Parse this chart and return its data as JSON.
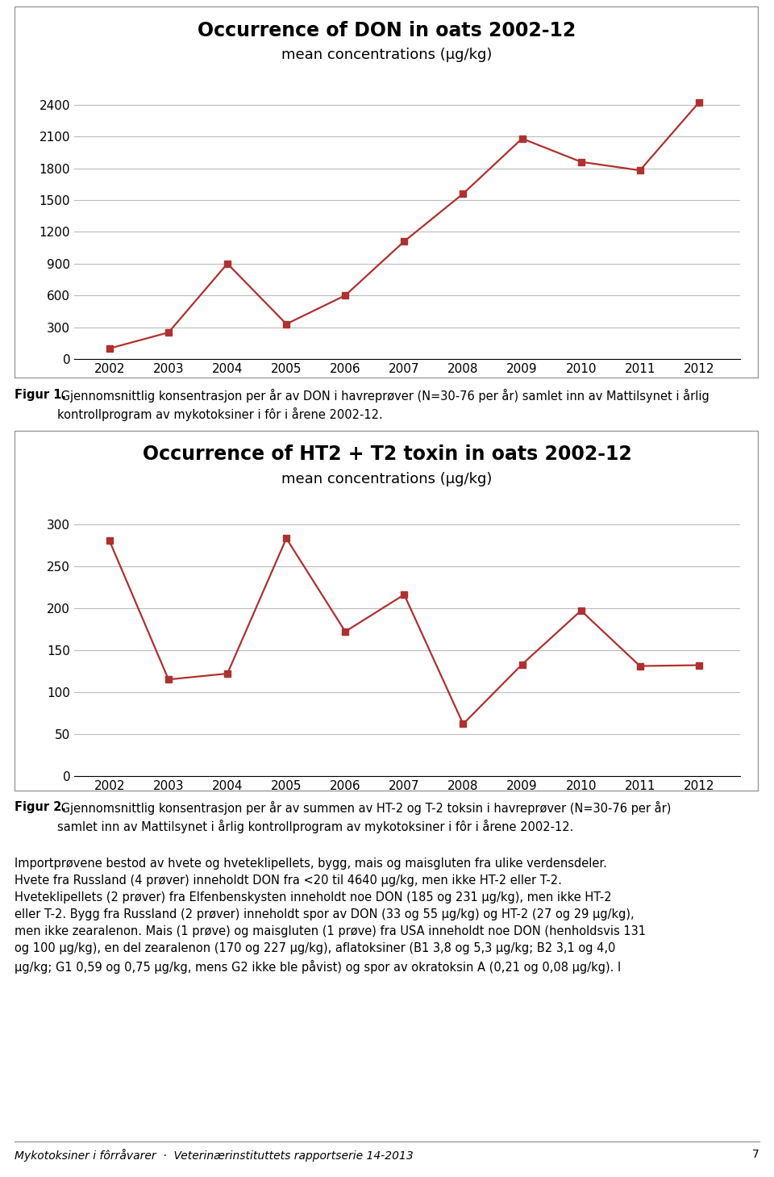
{
  "don_years": [
    2002,
    2003,
    2004,
    2005,
    2006,
    2007,
    2008,
    2009,
    2010,
    2011,
    2012
  ],
  "don_values": [
    100,
    250,
    900,
    330,
    600,
    1110,
    1560,
    2080,
    1860,
    1780,
    2420
  ],
  "don_title": "Occurrence of DON in oats 2002-12",
  "don_subtitle": "mean concentrations (µg/kg)",
  "don_yticks": [
    0,
    300,
    600,
    900,
    1200,
    1500,
    1800,
    2100,
    2400
  ],
  "don_ylim": [
    0,
    2550
  ],
  "ht2_years": [
    2002,
    2003,
    2004,
    2005,
    2006,
    2007,
    2008,
    2009,
    2010,
    2011,
    2012
  ],
  "ht2_values": [
    280,
    115,
    122,
    283,
    172,
    216,
    62,
    133,
    197,
    131,
    132
  ],
  "ht2_title": "Occurrence of HT2 + T2 toxin in oats 2002-12",
  "ht2_subtitle": "mean concentrations (µg/kg)",
  "ht2_yticks": [
    0,
    50,
    100,
    150,
    200,
    250,
    300
  ],
  "ht2_ylim": [
    0,
    315
  ],
  "line_color": "#B03030",
  "marker_style": "s",
  "marker_size": 6,
  "line_width": 1.6,
  "fig1_caption_bold": "Figur 1.",
  "fig1_caption_rest": " Gjennomsnittlig konsentrasjon per år av DON i havrepøver (N=30-76 per år) samlet inn av Mattilsynet i årlig\nkontrollprogram av mykotoksiner i fôr i årene 2002-12.",
  "fig2_caption_bold": "Figur 2.",
  "fig2_caption_rest": " Gjennomsnittlig konsentrasjon per år av summen av HT-2 og T-2 toksin i havrepøver (N=30-76 per år)\nsamlet inn av Mattilsynet i årlig kontrollprogram av mykotoksiner i fôr i årene 2002-12.",
  "body_text_line1": "Importpøvene bestod av hvete og hveteklipellets, bygg, mais og maisgluten fra ulike verdensdeler.",
  "body_text_line2": "Hvete fra Russland (4 pøver) inneholdt DON fra <20 til 4640 µg/kg, men ikke HT-2 eller T-2.",
  "body_text_line3": "Hveteklipellets (2 pøver) fra Elfenbenskysten inneholdt noe DON (185 og 231 µg/kg), men ikke HT-2",
  "body_text_line4": "eller T-2. Bygg fra Russland (2 pøver) inneholdt spor av DON (33 og 55 µg/kg) og HT-2 (27 og 29 µg/kg),",
  "body_text_line5": "men ikke zearalenon. Mais (1 pøve) og maisgluten (1 pøve) fra USA inneholdt noe DON (henholdsvis 131",
  "body_text_line6": "og 100 µg/kg), en del zearalenon (170 og 227 µg/kg), aflatoksiner (B1 3,8 og 5,3 µg/kg; B2 3,1 og 4,0",
  "body_text_line7": "µg/kg; G1 0,59 og 0,75 µg/kg, mens G2 ikke ble påvist) og spor av okratoksin A (0,21 og 0,08 µg/kg). I",
  "body_text": "Importpøvene bestod av hvete og hveteklipellets, bygg, mais og maisgluten fra ulike verdensdeler.\nHvete fra Russland (4 pøver) inneholdt DON fra <20 til 4640 µg/kg, men ikke HT-2 eller T-2.\nHveteklipellets (2 pøver) fra Elfenbenskysten inneholdt noe DON (185 og 231 µg/kg), men ikke HT-2\neller T-2. Bygg fra Russland (2 pøver) inneholdt spor av DON (33 og 55 µg/kg) og HT-2 (27 og 29 µg/kg),\nmen ikke zearalenon. Mais (1 pøve) og maisgluten (1 pøve) fra USA inneholdt noe DON (henholdsvis 131\nog 100 µg/kg), en del zearalenon (170 og 227 µg/kg), aflatoksiner (B1 3,8 og 5,3 µg/kg; B2 3,1 og 4,0\nµg/kg; G1 0,59 og 0,75 µg/kg, mens G2 ikke ble påvist) og spor av okratoksin A (0,21 og 0,08 µg/kg). I",
  "footer_text": "Mykotoksiner i fôrråvarer  ·  Veterinærinstituttets rapportserie 14-2013",
  "footer_page": "7",
  "bg_color": "#FFFFFF",
  "box_edge": "#999999",
  "title_fontsize": 17,
  "subtitle_fontsize": 13,
  "tick_fontsize": 11,
  "caption_fontsize": 10.5,
  "body_fontsize": 10.5,
  "footer_fontsize": 10
}
